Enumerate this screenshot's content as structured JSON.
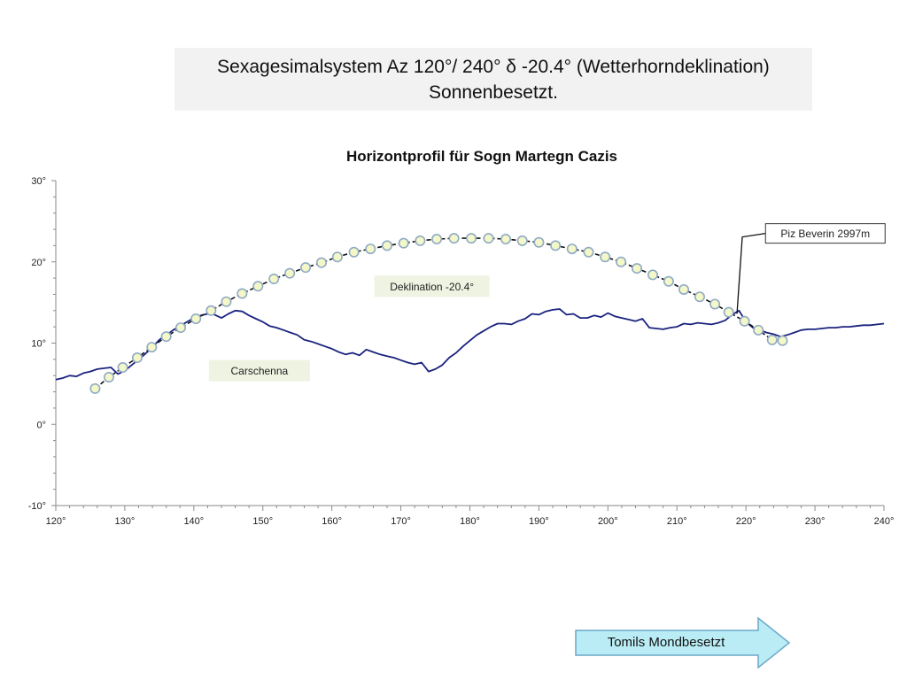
{
  "headline": {
    "line1": "Sexagesimalsystem Az 120°/ 240° δ -20.4° (Wetterhorndeklination)",
    "line2": "Sonnenbesetzt."
  },
  "nav": {
    "next_label": "Tomils Mondbesetzt"
  },
  "colors": {
    "horizon": "#1a237e",
    "sunpath_line": "#111111",
    "sunpath_marker_fill": "#f4f7c8",
    "sunpath_marker_stroke": "#8faac6",
    "label_box": "#eef3e2",
    "headline_bg": "#f2f2f2",
    "arrow_fill": "#b9ecf4",
    "arrow_stroke": "#6aa6c8"
  },
  "chart_data": {
    "type": "line",
    "title": "Horizontprofil für Sogn Martegn Cazis",
    "xlabel": "",
    "ylabel": "",
    "xlim": [
      120,
      240
    ],
    "ylim": [
      -10,
      30
    ],
    "x_ticks": [
      120,
      130,
      140,
      150,
      160,
      170,
      180,
      190,
      200,
      210,
      220,
      230,
      240
    ],
    "x_tick_labels": [
      "120°",
      "130°",
      "140°",
      "150°",
      "160°",
      "170°",
      "180°",
      "190°",
      "200°",
      "210°",
      "220°",
      "230°",
      "240°"
    ],
    "y_ticks": [
      30,
      20,
      10,
      0,
      -10
    ],
    "y_tick_labels": [
      "30°",
      "20°",
      "10°",
      "0°",
      "-10°"
    ],
    "grid": false,
    "annotations": [
      {
        "text": "Carschenna",
        "x": 149.5,
        "y": 6.6
      },
      {
        "text": "Deklination -20.4°",
        "x": 174.5,
        "y": 17.0
      },
      {
        "text": "Piz Beverin 2997m",
        "x": 231.5,
        "y": 23.5,
        "target": [
          218.7,
          13.6
        ]
      }
    ],
    "series": [
      {
        "kind": "horizon",
        "x": [
          120,
          121,
          122,
          123,
          124,
          125,
          126,
          127,
          128,
          129,
          130,
          131,
          132,
          133,
          134,
          135,
          136,
          137,
          138,
          139,
          140,
          141,
          142,
          143,
          144,
          145,
          146,
          147,
          148,
          149,
          150,
          151,
          152,
          153,
          154,
          155,
          156,
          157,
          158,
          159,
          160,
          161,
          162,
          163,
          164,
          165,
          166,
          167,
          168,
          169,
          170,
          171,
          172,
          173,
          174,
          175,
          176,
          177,
          178,
          179,
          180,
          181,
          182,
          183,
          184,
          185,
          186,
          187,
          188,
          189,
          190,
          191,
          192,
          193,
          194,
          195,
          196,
          197,
          198,
          199,
          200,
          201,
          202,
          203,
          204,
          205,
          206,
          207,
          208,
          209,
          210,
          211,
          212,
          213,
          214,
          215,
          216,
          217,
          218,
          219,
          220,
          221,
          222,
          223,
          224,
          225,
          226,
          227,
          228,
          229,
          230,
          231,
          232,
          233,
          234,
          235,
          236,
          237,
          238,
          239,
          240
        ],
        "y": [
          5.5,
          5.7,
          6.0,
          5.9,
          6.3,
          6.5,
          6.8,
          6.9,
          7.0,
          6.2,
          6.6,
          7.3,
          8.0,
          8.7,
          9.5,
          10.4,
          11.0,
          11.6,
          12.1,
          12.6,
          13.1,
          13.4,
          13.6,
          13.5,
          13.1,
          13.6,
          14.0,
          13.9,
          13.4,
          13.0,
          12.6,
          12.1,
          11.9,
          11.6,
          11.3,
          11.0,
          10.4,
          10.2,
          9.9,
          9.6,
          9.3,
          8.9,
          8.6,
          8.8,
          8.5,
          9.2,
          8.9,
          8.6,
          8.4,
          8.2,
          7.9,
          7.6,
          7.4,
          7.6,
          6.5,
          6.8,
          7.3,
          8.2,
          8.8,
          9.6,
          10.3,
          11.0,
          11.5,
          12.0,
          12.4,
          12.4,
          12.3,
          12.7,
          13.0,
          13.6,
          13.5,
          13.9,
          14.1,
          14.2,
          13.5,
          13.6,
          13.1,
          13.1,
          13.4,
          13.2,
          13.7,
          13.3,
          13.1,
          12.9,
          12.7,
          13.0,
          11.9,
          11.8,
          11.7,
          11.9,
          12.0,
          12.4,
          12.3,
          12.5,
          12.4,
          12.3,
          12.5,
          12.8,
          13.5,
          14.0,
          12.6,
          11.9,
          11.6,
          11.3,
          11.1,
          10.8,
          11.0,
          11.3,
          11.6,
          11.7,
          11.7,
          11.8,
          11.9,
          11.9,
          12.0,
          12.0,
          12.1,
          12.2,
          12.2,
          12.3,
          12.4
        ]
      },
      {
        "kind": "sunpath",
        "x": [
          125.7,
          127.7,
          129.7,
          131.8,
          133.9,
          136.0,
          138.1,
          140.3,
          142.5,
          144.7,
          147.0,
          149.3,
          151.6,
          153.9,
          156.2,
          158.5,
          160.8,
          163.2,
          165.6,
          168.0,
          170.4,
          172.8,
          175.2,
          177.7,
          180.2,
          182.7,
          185.2,
          187.6,
          190.0,
          192.4,
          194.8,
          197.2,
          199.6,
          201.9,
          204.2,
          206.5,
          208.8,
          211.0,
          213.3,
          215.5,
          217.5,
          219.8,
          221.8,
          223.8,
          225.3
        ],
        "y": [
          4.4,
          5.8,
          7.0,
          8.2,
          9.5,
          10.8,
          11.9,
          13.0,
          14.0,
          15.1,
          16.1,
          17.0,
          17.9,
          18.6,
          19.3,
          19.9,
          20.6,
          21.2,
          21.6,
          22.0,
          22.3,
          22.6,
          22.8,
          22.9,
          22.9,
          22.9,
          22.8,
          22.6,
          22.4,
          22.0,
          21.6,
          21.2,
          20.6,
          20.0,
          19.2,
          18.4,
          17.6,
          16.6,
          15.7,
          14.8,
          13.8,
          12.7,
          11.6,
          10.4,
          10.3
        ]
      }
    ]
  }
}
